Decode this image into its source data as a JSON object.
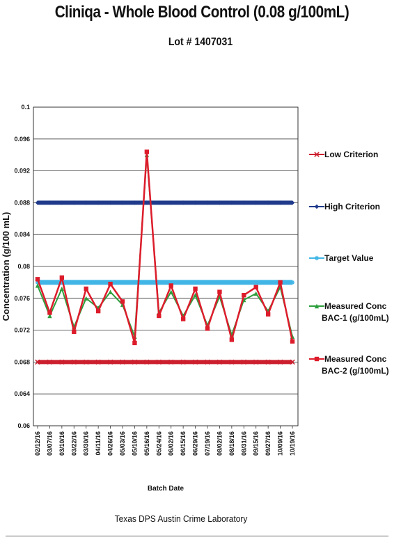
{
  "chart_data": {
    "type": "line",
    "title": "Cliniqa  - Whole Blood Control (0.08 g/100mL)",
    "subtitle": "Lot # 1407031",
    "xlabel": "Batch Date",
    "ylabel": "Concentration (g/100 mL)",
    "ylim": [
      0.06,
      0.1
    ],
    "yticks": [
      "0.06",
      "0.064",
      "0.068",
      "0.072",
      "0.076",
      "0.08",
      "0.084",
      "0.088",
      "0.092",
      "0.096",
      "0.1"
    ],
    "categories": [
      "02/12/16",
      "03/07/16",
      "03/10/16",
      "03/22/16",
      "03/30/16",
      "04/11/16",
      "04/26/16",
      "05/03/16",
      "05/10/16",
      "05/16/16",
      "05/24/16",
      "06/02/16",
      "06/15/16",
      "06/29/16",
      "07/19/16",
      "08/02/16",
      "08/18/16",
      "08/31/16",
      "09/15/16",
      "09/27/16",
      "10/09/16",
      "10/19/16"
    ],
    "grid": true,
    "legend_position": "right",
    "series": [
      {
        "name": "Low Criterion",
        "color": "#cc1f2e",
        "marker": "x",
        "values": [
          0.068,
          0.068,
          0.068,
          0.068,
          0.068,
          0.068,
          0.068,
          0.068,
          0.068,
          0.068,
          0.068,
          0.068,
          0.068,
          0.068,
          0.068,
          0.068,
          0.068,
          0.068,
          0.068,
          0.068,
          0.068,
          0.068
        ]
      },
      {
        "name": "High Criterion",
        "color": "#1f3a8a",
        "marker": "diamond",
        "values": [
          0.088,
          0.088,
          0.088,
          0.088,
          0.088,
          0.088,
          0.088,
          0.088,
          0.088,
          0.088,
          0.088,
          0.088,
          0.088,
          0.088,
          0.088,
          0.088,
          0.088,
          0.088,
          0.088,
          0.088,
          0.088,
          0.088
        ]
      },
      {
        "name": "Target Value",
        "color": "#41b6e6",
        "marker": "star",
        "values": [
          0.078,
          0.078,
          0.078,
          0.078,
          0.078,
          0.078,
          0.078,
          0.078,
          0.078,
          0.078,
          0.078,
          0.078,
          0.078,
          0.078,
          0.078,
          0.078,
          0.078,
          0.078,
          0.078,
          0.078,
          0.078,
          0.078
        ]
      },
      {
        "name": "Measured Conc BAC-1 (g/100mL)",
        "color": "#2e9e3e",
        "marker": "triangle",
        "values": [
          0.0776,
          0.0738,
          0.0772,
          0.0724,
          0.076,
          0.0748,
          0.0768,
          0.0752,
          0.0712,
          0.094,
          0.0742,
          0.0768,
          0.0738,
          0.0764,
          0.0726,
          0.0762,
          0.0714,
          0.0758,
          0.0766,
          0.0744,
          0.0774,
          0.0712
        ]
      },
      {
        "name": "Measured Conc BAC-2 (g/100mL)",
        "color": "#dd1c2b",
        "marker": "square",
        "values": [
          0.0784,
          0.0742,
          0.0786,
          0.0718,
          0.0772,
          0.0744,
          0.0778,
          0.0756,
          0.0704,
          0.0944,
          0.0738,
          0.0776,
          0.0734,
          0.0772,
          0.0722,
          0.0768,
          0.0708,
          0.0764,
          0.0774,
          0.074,
          0.078,
          0.0706
        ]
      }
    ]
  },
  "footer": "Texas DPS Austin Crime Laboratory"
}
